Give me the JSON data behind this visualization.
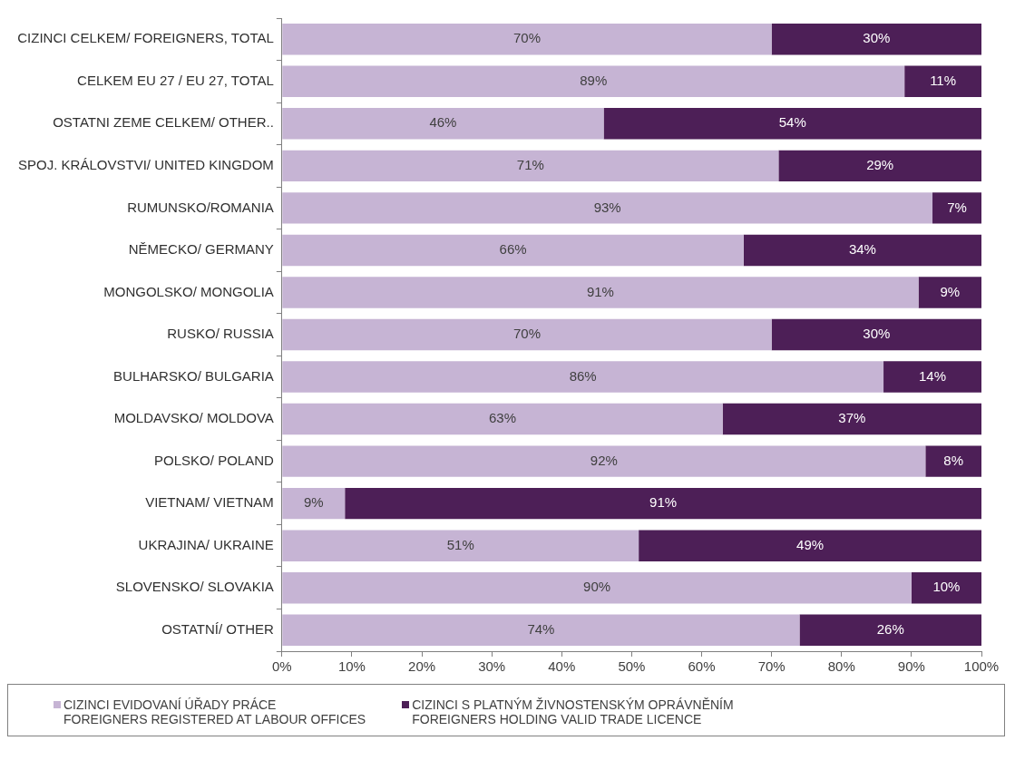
{
  "chart_data": {
    "type": "bar",
    "orientation": "horizontal",
    "stacked": true,
    "legend": "bottom",
    "grid": false,
    "categories": [
      "CIZINCI CELKEM/ FOREIGNERS, TOTAL",
      "CELKEM EU 27 / EU 27, TOTAL",
      "OSTATNI ZEME CELKEM/ OTHER..",
      "SPOJ. KRÁLOVSTVI/ UNITED KINGDOM",
      "RUMUNSKO/ROMANIA",
      "NĚMECKO/ GERMANY",
      "MONGOLSKO/ MONGOLIA",
      "RUSKO/ RUSSIA",
      "BULHARSKO/ BULGARIA",
      "MOLDAVSKO/ MOLDOVA",
      "POLSKO/ POLAND",
      "VIETNAM/ VIETNAM",
      "UKRAJINA/ UKRAINE",
      "SLOVENSKO/ SLOVAKIA",
      "OSTATNÍ/ OTHER"
    ],
    "series": [
      {
        "name": "CIZINCI EVIDOVANÍ ÚŘADY PRÁCE\nFOREIGNERS REGISTERED AT LABOUR OFFICES",
        "color": "#c6b4d4",
        "values": [
          70,
          89,
          46,
          71,
          93,
          66,
          91,
          70,
          86,
          63,
          92,
          9,
          51,
          90,
          74
        ],
        "value_labels": [
          "70%",
          "89%",
          "46%",
          "71%",
          "93%",
          "66%",
          "91%",
          "70%",
          "86%",
          "63%",
          "92%",
          "9%",
          "51%",
          "90%",
          "74%"
        ]
      },
      {
        "name": "CIZINCI S PLATNÝM ŽIVNOSTENSKÝM OPRÁVNĚNÍM\nFOREIGNERS HOLDING VALID TRADE LICENCE",
        "color": "#4d1f57",
        "values": [
          30,
          11,
          54,
          29,
          7,
          34,
          9,
          30,
          14,
          37,
          8,
          91,
          49,
          10,
          26
        ],
        "value_labels": [
          "30%",
          "11%",
          "54%",
          "29%",
          "7%",
          "34%",
          "9%",
          "30%",
          "14%",
          "37%",
          "8%",
          "91%",
          "49%",
          "10%",
          "26%"
        ]
      }
    ],
    "xlim": [
      0,
      100
    ],
    "xticks": [
      {
        "value": 0,
        "label": "0%"
      },
      {
        "value": 10,
        "label": "10%"
      },
      {
        "value": 20,
        "label": "20%"
      },
      {
        "value": 30,
        "label": "30%"
      },
      {
        "value": 40,
        "label": "40%"
      },
      {
        "value": 50,
        "label": "50%"
      },
      {
        "value": 60,
        "label": "60%"
      },
      {
        "value": 70,
        "label": "70%"
      },
      {
        "value": 80,
        "label": "80%"
      },
      {
        "value": 90,
        "label": "90%"
      },
      {
        "value": 100,
        "label": "100%"
      }
    ]
  }
}
